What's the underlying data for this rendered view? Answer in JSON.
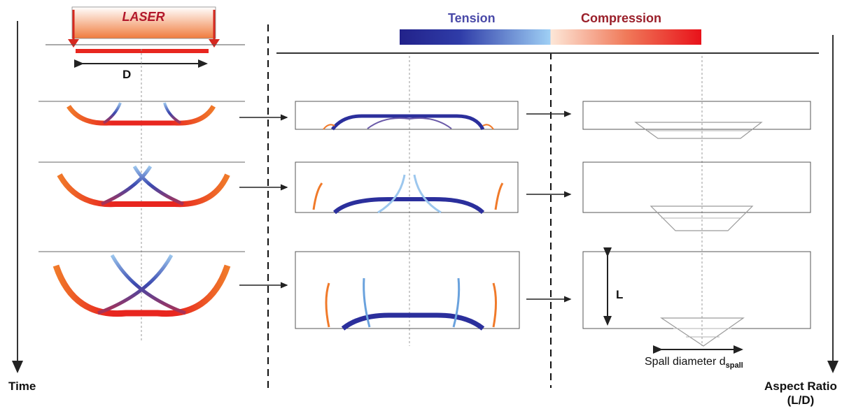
{
  "labels": {
    "laser": "LASER",
    "d": "D",
    "tension": "Tension",
    "compression": "Compression",
    "time": "Time",
    "aspect_ratio": "Aspect Ratio",
    "aspect_ratio_sub": "(L/D)",
    "l": "L",
    "spall_diameter": "Spall diameter d",
    "spall_sub": "spall"
  },
  "colors": {
    "compression_red": "#e8261f",
    "compression_orange": "#f07a2a",
    "tension_blue": "#2b2f9c",
    "tension_light": "#9cc7ee",
    "laser_top": "#ffffff",
    "laser_bottom": "#f07b3d",
    "arrow_red": "#d6281f",
    "line": "#333333"
  },
  "stages": [
    {
      "name": "stage-1",
      "spread": 0.35
    },
    {
      "name": "stage-2",
      "spread": 0.65
    },
    {
      "name": "stage-3",
      "spread": 1.0
    }
  ]
}
